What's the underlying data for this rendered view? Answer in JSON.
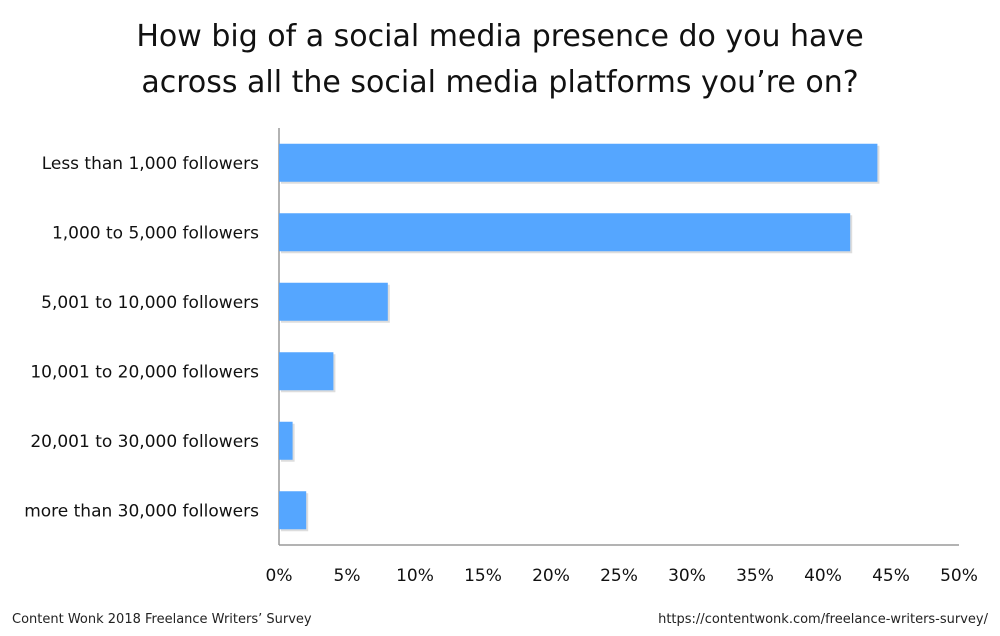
{
  "chart_data": {
    "type": "bar",
    "orientation": "horizontal",
    "title_lines": [
      "How big of a social media presence do you have",
      "across all the social media platforms you’re on?"
    ],
    "categories": [
      "Less than 1,000 followers",
      "1,000 to 5,000 followers",
      "5,001 to 10,000 followers",
      "10,001 to 20,000 followers",
      "20,001 to 30,000 followers",
      "more than 30,000 followers"
    ],
    "values": [
      44,
      42,
      8,
      4,
      1,
      2
    ],
    "xlim": [
      0,
      50
    ],
    "x_ticks": [
      "0%",
      "5%",
      "10%",
      "15%",
      "20%",
      "25%",
      "30%",
      "35%",
      "40%",
      "45%",
      "50%"
    ],
    "bar_color": "#55a6ff",
    "grid": false
  },
  "footer": {
    "source": "Content Wonk 2018 Freelance Writers’ Survey",
    "url": "https://contentwonk.com/freelance-writers-survey/"
  }
}
